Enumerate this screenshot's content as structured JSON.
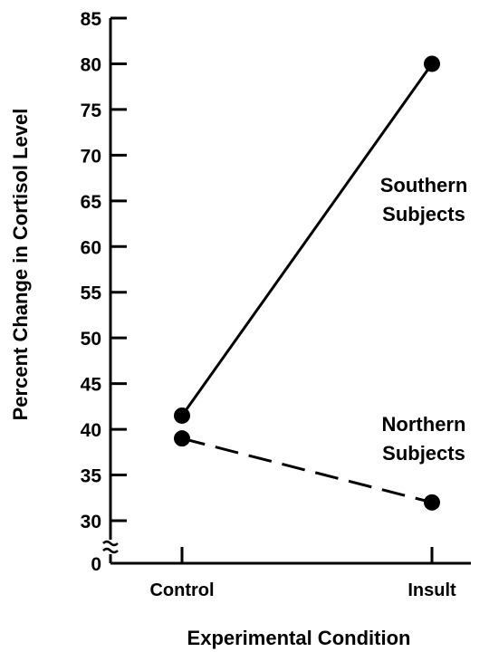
{
  "chart_data": {
    "type": "line",
    "title": "",
    "xlabel": "Experimental Condition",
    "ylabel": "Percent Change in Cortisol Level",
    "categories": [
      "Control",
      "Insult"
    ],
    "y_ticks": [
      "0",
      "30",
      "35",
      "40",
      "45",
      "50",
      "55",
      "60",
      "65",
      "70",
      "75",
      "80",
      "85"
    ],
    "y_axis_break": true,
    "ylim": [
      30,
      85
    ],
    "grid": false,
    "legend": "none (series labeled directly on the plot)",
    "series": [
      {
        "name": "Southern Subjects",
        "label_lines": [
          "Southern",
          "Subjects"
        ],
        "values": [
          41.5,
          80
        ],
        "line_style": "solid"
      },
      {
        "name": "Northern Subjects",
        "label_lines": [
          "Northern",
          "Subjects"
        ],
        "values": [
          39,
          32
        ],
        "line_style": "dashed"
      }
    ],
    "colors": {
      "ink": "#000000",
      "background": "#ffffff"
    }
  }
}
